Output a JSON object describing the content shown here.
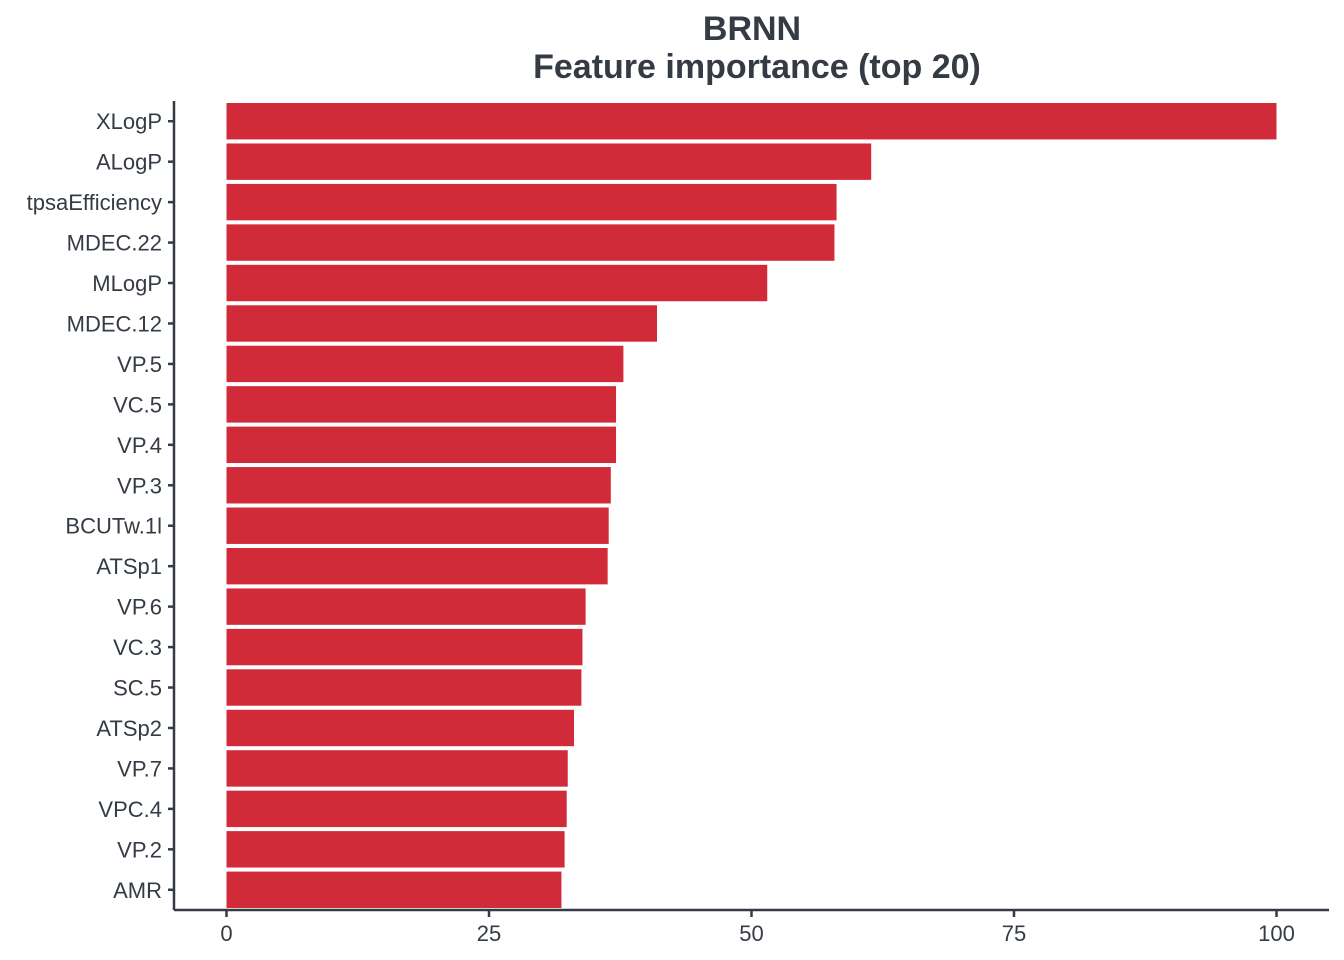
{
  "chart_data": {
    "type": "bar",
    "orientation": "horizontal",
    "title": [
      "BRNN",
      "Feature importance (top 20)"
    ],
    "xlabel": "",
    "ylabel": "",
    "categories": [
      "XLogP",
      "ALogP",
      "tpsaEfficiency",
      "MDEC.22",
      "MLogP",
      "MDEC.12",
      "VP.5",
      "VC.5",
      "VP.4",
      "VP.3",
      "BCUTw.1l",
      "ATSp1",
      "VP.6",
      "VC.3",
      "SC.5",
      "ATSp2",
      "VP.7",
      "VPC.4",
      "VP.2",
      "AMR"
    ],
    "values": [
      100,
      61.4,
      58.1,
      57.9,
      51.5,
      41.0,
      37.8,
      37.1,
      37.1,
      36.6,
      36.4,
      36.3,
      34.2,
      33.9,
      33.8,
      33.1,
      32.5,
      32.4,
      32.2,
      31.9
    ],
    "xlim": [
      -5,
      105
    ],
    "xticks": [
      0,
      25,
      50,
      75,
      100
    ],
    "xtick_labels": [
      "0",
      "25",
      "50",
      "75",
      "100"
    ],
    "bar_color": "#d12a38",
    "grid": false,
    "legend": "none"
  }
}
